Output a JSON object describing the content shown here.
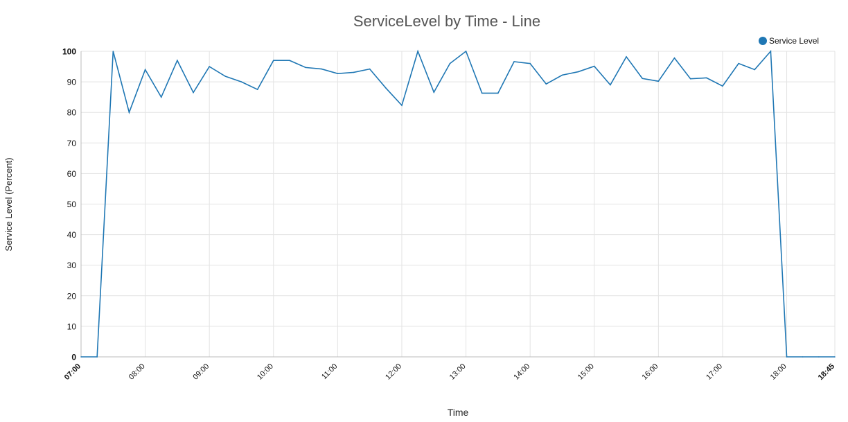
{
  "chart_data": {
    "type": "line",
    "title": "ServiceLevel by Time - Line",
    "xlabel": "Time",
    "ylabel": "Service Level (Percent)",
    "xlim": [
      "07:00",
      "18:45"
    ],
    "ylim": [
      0,
      100
    ],
    "grid": true,
    "legend_position": "top-right",
    "x_ticks": [
      "07:00",
      "08:00",
      "09:00",
      "10:00",
      "11:00",
      "12:00",
      "13:00",
      "14:00",
      "15:00",
      "16:00",
      "17:00",
      "18:00",
      "18:45"
    ],
    "y_ticks": [
      0,
      10,
      20,
      30,
      40,
      50,
      60,
      70,
      80,
      90,
      100
    ],
    "x": [
      "07:00",
      "07:15",
      "07:30",
      "07:45",
      "08:00",
      "08:15",
      "08:30",
      "08:45",
      "09:00",
      "09:15",
      "09:30",
      "09:45",
      "10:00",
      "10:15",
      "10:30",
      "10:45",
      "11:00",
      "11:15",
      "11:30",
      "11:45",
      "12:00",
      "12:15",
      "12:30",
      "12:45",
      "13:00",
      "13:15",
      "13:30",
      "13:45",
      "14:00",
      "14:15",
      "14:30",
      "14:45",
      "15:00",
      "15:15",
      "15:30",
      "15:45",
      "16:00",
      "16:15",
      "16:30",
      "16:45",
      "17:00",
      "17:15",
      "17:30",
      "17:45",
      "18:00",
      "18:15",
      "18:30",
      "18:45"
    ],
    "series": [
      {
        "name": "Service Level",
        "color": "#1f77b4",
        "values": [
          0,
          0,
          100,
          80,
          94,
          85,
          97,
          86.5,
          95,
          91.8,
          90,
          87.5,
          97,
          97,
          94.7,
          94.2,
          92.7,
          93.1,
          94.2,
          88,
          82.3,
          100,
          86.6,
          96,
          100,
          86.3,
          86.3,
          96.6,
          96,
          89.3,
          92.2,
          93.3,
          95.1,
          89,
          98.2,
          91.1,
          90.2,
          97.8,
          91,
          91.3,
          88.6,
          96,
          94,
          100,
          0,
          0,
          0,
          0
        ]
      }
    ]
  }
}
